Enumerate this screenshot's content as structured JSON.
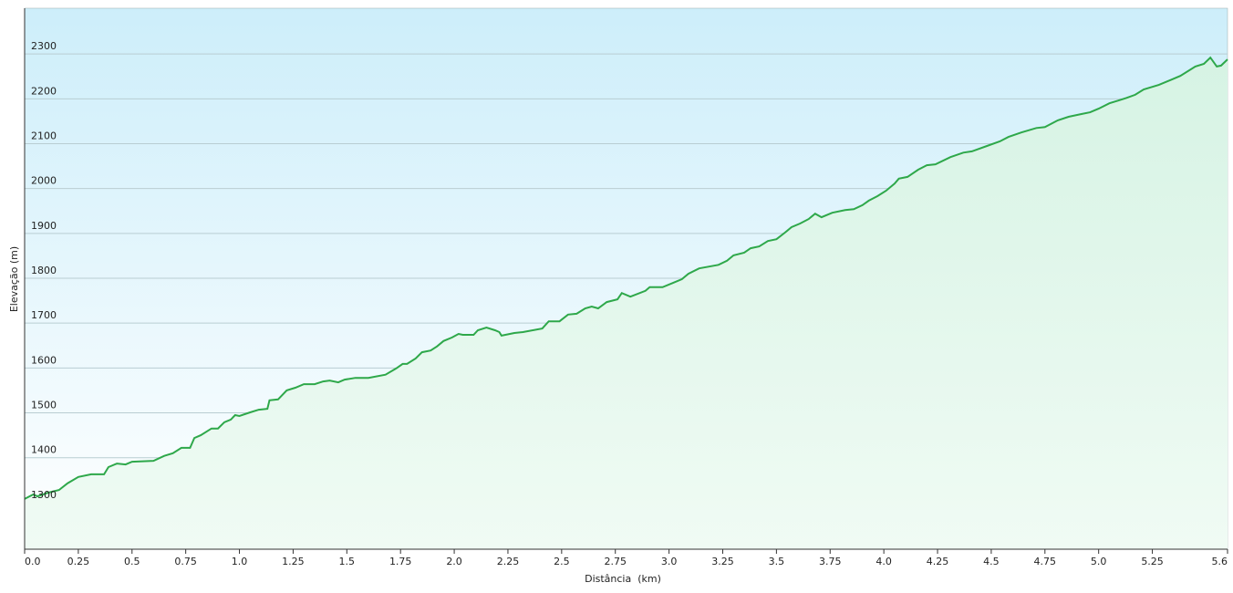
{
  "chart_data": {
    "type": "area",
    "xlabel": "Distância  (km)",
    "ylabel": "Elevação (m)",
    "color": "#2ea84a",
    "fill_color": "#e4f7ec",
    "xlim": [
      0,
      5.6
    ],
    "ylim": [
      1196,
      2402
    ],
    "xticks": [
      {
        "value": 0,
        "label": "0.0"
      },
      0.25,
      0.5,
      0.75,
      {
        "value": 1,
        "label": "1.0"
      },
      1.25,
      1.5,
      1.75,
      {
        "value": 2,
        "label": "2.0"
      },
      2.25,
      2.5,
      2.75,
      {
        "value": 3,
        "label": "3.0"
      },
      3.25,
      3.5,
      3.75,
      {
        "value": 4,
        "label": "4.0"
      },
      4.25,
      4.5,
      4.75,
      {
        "value": 5,
        "label": "5.0"
      },
      5.25,
      5.6
    ],
    "yticks": [
      1300,
      1400,
      1500,
      1600,
      1700,
      1800,
      1900,
      2000,
      2100,
      2200,
      2300
    ],
    "grid": true,
    "x": [
      0,
      0.04,
      0.06,
      0.11,
      0.16,
      0.2,
      0.25,
      0.31,
      0.37,
      0.39,
      0.43,
      0.47,
      0.5,
      0.6,
      0.65,
      0.69,
      0.73,
      0.77,
      0.79,
      0.82,
      0.87,
      0.9,
      0.93,
      0.96,
      0.98,
      1.0,
      1.05,
      1.09,
      1.13,
      1.14,
      1.18,
      1.22,
      1.26,
      1.3,
      1.35,
      1.39,
      1.42,
      1.46,
      1.49,
      1.54,
      1.6,
      1.68,
      1.73,
      1.76,
      1.78,
      1.82,
      1.85,
      1.89,
      1.92,
      1.95,
      1.99,
      2.02,
      2.04,
      2.09,
      2.11,
      2.15,
      2.19,
      2.21,
      2.22,
      2.28,
      2.32,
      2.41,
      2.44,
      2.49,
      2.53,
      2.57,
      2.61,
      2.64,
      2.67,
      2.71,
      2.76,
      2.78,
      2.82,
      2.89,
      2.91,
      2.97,
      3.02,
      3.06,
      3.09,
      3.14,
      3.23,
      3.27,
      3.3,
      3.35,
      3.38,
      3.42,
      3.46,
      3.5,
      3.54,
      3.57,
      3.61,
      3.65,
      3.68,
      3.71,
      3.76,
      3.82,
      3.86,
      3.9,
      3.93,
      3.97,
      4.01,
      4.05,
      4.07,
      4.11,
      4.16,
      4.2,
      4.24,
      4.31,
      4.37,
      4.41,
      4.48,
      4.54,
      4.58,
      4.64,
      4.71,
      4.75,
      4.81,
      4.86,
      4.92,
      4.96,
      5.0,
      5.05,
      5.09,
      5.13,
      5.17,
      5.21,
      5.28,
      5.34,
      5.38,
      5.45,
      5.49,
      5.52,
      5.55,
      5.57,
      5.6
    ],
    "values": [
      1308,
      1318,
      1314,
      1322,
      1328,
      1343,
      1357,
      1363,
      1363,
      1379,
      1387,
      1385,
      1391,
      1393,
      1404,
      1410,
      1422,
      1422,
      1444,
      1450,
      1465,
      1465,
      1479,
      1485,
      1495,
      1493,
      1501,
      1507,
      1509,
      1528,
      1530,
      1550,
      1556,
      1564,
      1564,
      1570,
      1572,
      1568,
      1574,
      1578,
      1578,
      1585,
      1599,
      1609,
      1609,
      1621,
      1635,
      1639,
      1648,
      1660,
      1668,
      1676,
      1674,
      1674,
      1684,
      1690,
      1684,
      1680,
      1672,
      1678,
      1680,
      1688,
      1704,
      1704,
      1719,
      1721,
      1733,
      1737,
      1733,
      1747,
      1753,
      1767,
      1759,
      1772,
      1780,
      1780,
      1790,
      1798,
      1810,
      1822,
      1830,
      1839,
      1851,
      1857,
      1867,
      1871,
      1883,
      1887,
      1902,
      1914,
      1922,
      1932,
      1944,
      1936,
      1946,
      1952,
      1954,
      1963,
      1973,
      1983,
      1995,
      2011,
      2022,
      2026,
      2042,
      2052,
      2054,
      2070,
      2080,
      2083,
      2095,
      2105,
      2115,
      2125,
      2135,
      2137,
      2152,
      2160,
      2166,
      2170,
      2178,
      2190,
      2196,
      2202,
      2209,
      2221,
      2231,
      2243,
      2251,
      2272,
      2278,
      2292,
      2272,
      2274,
      2288
    ]
  }
}
